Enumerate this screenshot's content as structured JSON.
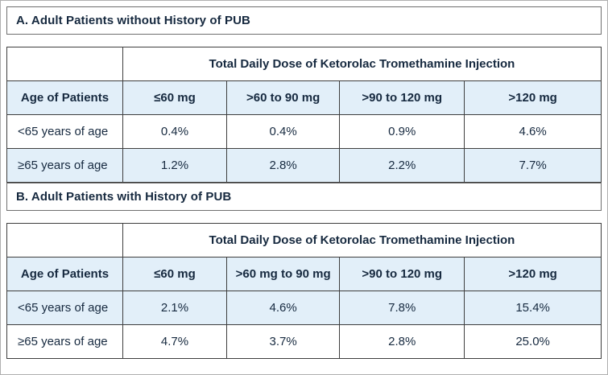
{
  "colors": {
    "accent_row_bg": "#e2eff9",
    "text": "#16293f",
    "table_border": "#3e3e3e",
    "outer_border": "#b0b0b0"
  },
  "section_a": {
    "title": "A. Adult Patients without History of PUB",
    "table": {
      "span_header": "Total Daily Dose of Ketorolac Tromethamine Injection",
      "col_headers": [
        "Age of Patients",
        "≤60 mg",
        ">60 to 90 mg",
        ">90 to 120 mg",
        ">120 mg"
      ],
      "rows": [
        {
          "label": "<65 years of age",
          "values": [
            "0.4%",
            "0.4%",
            "0.9%",
            "4.6%"
          ]
        },
        {
          "label": "≥65 years of age",
          "values": [
            "1.2%",
            "2.8%",
            "2.2%",
            "7.7%"
          ]
        }
      ]
    }
  },
  "section_b": {
    "title": "B. Adult Patients with History of PUB",
    "table": {
      "span_header": "Total Daily Dose of Ketorolac Tromethamine Injection",
      "col_headers": [
        "Age of Patients",
        "≤60 mg",
        ">60 mg to 90 mg",
        ">90 to 120 mg",
        ">120 mg"
      ],
      "rows": [
        {
          "label": "<65 years of age",
          "values": [
            "2.1%",
            "4.6%",
            "7.8%",
            "15.4%"
          ]
        },
        {
          "label": "≥65 years of age",
          "values": [
            "4.7%",
            "3.7%",
            "2.8%",
            "25.0%"
          ]
        }
      ]
    }
  }
}
